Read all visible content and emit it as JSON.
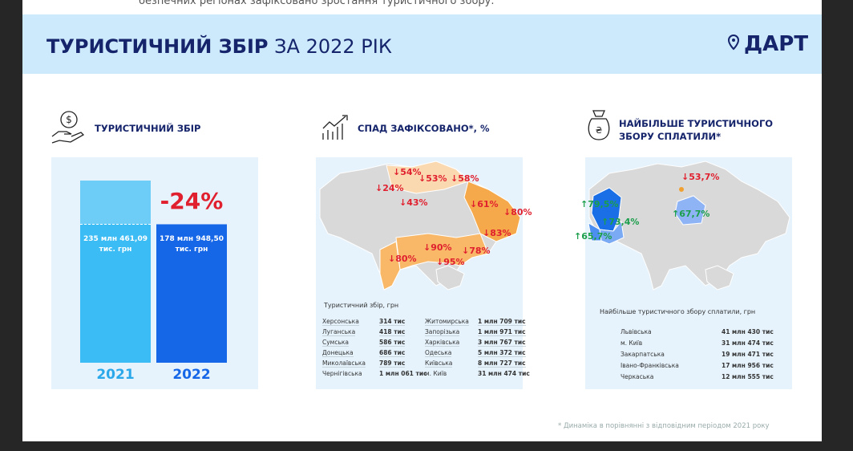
{
  "top_strip": "безпечних регіонах зафіксовано зростання туристичного збору.",
  "header": {
    "title_bold": "ТУРИСТИЧНИЙ ЗБІР",
    "title_rest": "ЗА 2022 РІК",
    "logo": "ДАРТ"
  },
  "sections": {
    "collection": {
      "heading": "ТУРИСТИЧНИЙ ЗБІР",
      "categories": [
        "2021",
        "2022"
      ],
      "values": [
        235461.09,
        178948.5
      ],
      "value_labels": [
        "235 млн 461,09 тис. грн",
        "178 млн 948,50 тис. грн"
      ],
      "change": "-24%"
    },
    "decline": {
      "heading": "СПАД ЗАФІКСОВАНО*, %",
      "map_labels": [
        "↓54%",
        "↓53%",
        "↓58%",
        "↓24%",
        "↓43%",
        "↓61%",
        "↓80%",
        "↓83%",
        "↓90%",
        "↓78%",
        "↓80%",
        "↓95%"
      ],
      "table_caption": "Туристичний збір, грн",
      "rows": [
        [
          "Херсонська",
          "314 тис",
          "Житомирська",
          "1 млн 709 тис"
        ],
        [
          "Луганська",
          "418 тис",
          "Запорізька",
          "1 млн 971 тис"
        ],
        [
          "Сумська",
          "586 тис",
          "Харківська",
          "3 млн 767 тис"
        ],
        [
          "Донецька",
          "686 тис",
          "Одеська",
          "5 млн 372 тис"
        ],
        [
          "Миколаївська",
          "789 тис",
          "Київська",
          "8 млн 727 тис"
        ],
        [
          "Чернігівська",
          "1 млн 061 тис",
          "м. Київ",
          "31 млн 474 тис"
        ]
      ]
    },
    "top_payers": {
      "heading": "НАЙБІЛЬШЕ ТУРИСТИЧНОГО ЗБОРУ СПЛАТИЛИ*",
      "map_labels": [
        "↓53,7%",
        "↑79,5%",
        "↑73,4%",
        "↑67,7%",
        "↑65,7%"
      ],
      "table_caption": "Найбільше туристичного збору сплатили, грн",
      "rows": [
        [
          "Львівська",
          "41 млн 430 тис"
        ],
        [
          "м. Київ",
          "31 млн 474 тис"
        ],
        [
          "Закарпатська",
          "19 млн 471 тис"
        ],
        [
          "Івано-Франківська",
          "17 млн 956 тис"
        ],
        [
          "Черкаська",
          "12 млн 555 тис"
        ]
      ]
    }
  },
  "footnote": "* Динаміка в порівнянні з відповідним періодом 2021 року"
}
